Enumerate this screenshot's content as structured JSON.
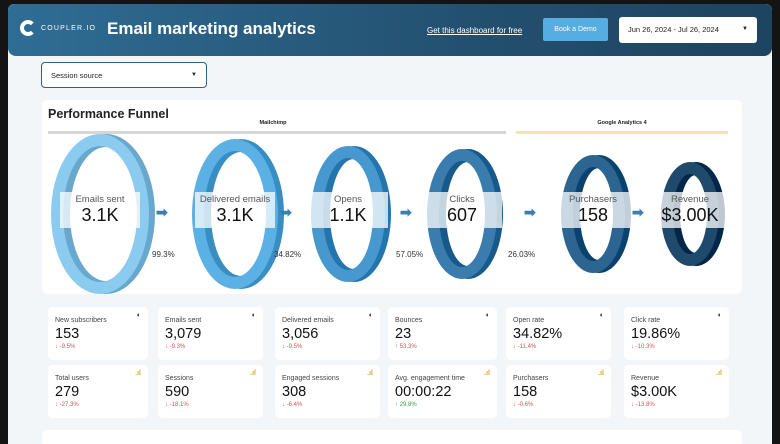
{
  "header": {
    "logo": "COUPLER.IO",
    "title": "Email marketing analytics",
    "link": "Get this dashboard for free",
    "demo": "Book a Demo",
    "date_range": "Jun 26, 2024 - Jul 26, 2024"
  },
  "filter": {
    "session_source": "Session source"
  },
  "funnel": {
    "title": "Performance Funnel",
    "sources": [
      "Mailchimp",
      "Google Analytics 4"
    ],
    "source_colors": [
      "#d6d6d6",
      "#f7e4a6"
    ],
    "stages": [
      {
        "label": "Emails sent",
        "value": "3.1K",
        "color": "#8ccbf0"
      },
      {
        "label": "Delivered emails",
        "value": "3.1K",
        "color": "#5bb0e4"
      },
      {
        "label": "Opens",
        "value": "1.1K",
        "color": "#4798cf"
      },
      {
        "label": "Clicks",
        "value": "607",
        "color": "#3a7cad"
      },
      {
        "label": "Purchasers",
        "value": "158",
        "color": "#2c6590"
      },
      {
        "label": "Revenue",
        "value": "$3.00K",
        "color": "#1f4a6c"
      }
    ],
    "rates": [
      "99.3%",
      "34.82%",
      "57.05%",
      "26.03%"
    ]
  },
  "kpis": [
    {
      "label": "New subscribers",
      "value": "153",
      "delta": "-9.5%",
      "dir": "down",
      "source": "mailchimp-icon"
    },
    {
      "label": "Emails sent",
      "value": "3,079",
      "delta": "-9.3%",
      "dir": "down",
      "source": "mailchimp-icon"
    },
    {
      "label": "Delivered emails",
      "value": "3,056",
      "delta": "-9.5%",
      "dir": "down",
      "source": "mailchimp-icon"
    },
    {
      "label": "Bounces",
      "value": "23",
      "delta": "53.3%",
      "dir": "up-bad",
      "source": "mailchimp-icon"
    },
    {
      "label": "Open rate",
      "value": "34.82%",
      "delta": "-11.4%",
      "dir": "down",
      "source": "mailchimp-icon"
    },
    {
      "label": "Click rate",
      "value": "19.86%",
      "delta": "-10.3%",
      "dir": "down",
      "source": "mailchimp-icon"
    },
    {
      "label": "Total users",
      "value": "279",
      "delta": "-27.3%",
      "dir": "down",
      "source": "ga-icon"
    },
    {
      "label": "Sessions",
      "value": "590",
      "delta": "-18.1%",
      "dir": "down",
      "source": "ga-icon"
    },
    {
      "label": "Engaged sessions",
      "value": "308",
      "delta": "-6.4%",
      "dir": "down",
      "source": "ga-icon"
    },
    {
      "label": "Avg. engagement time",
      "value": "00:00:22",
      "delta": "29.8%",
      "dir": "up",
      "source": "ga-icon"
    },
    {
      "label": "Purchasers",
      "value": "158",
      "delta": "-0.6%",
      "dir": "down",
      "source": "ga-icon"
    },
    {
      "label": "Revenue",
      "value": "$3.00K",
      "delta": "-13.8%",
      "dir": "down",
      "source": "ga-icon"
    }
  ]
}
